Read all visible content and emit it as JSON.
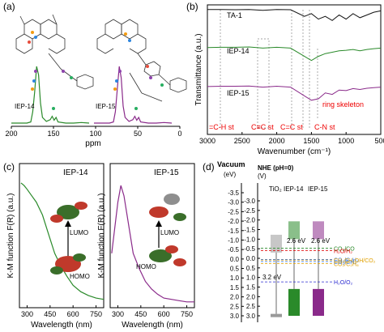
{
  "panels": {
    "a": {
      "label": "(a)",
      "xlabel": "ppm",
      "xticks": [
        "200",
        "150",
        "100",
        "50",
        "0"
      ],
      "left_name": "IEP-14",
      "right_name": "IEP-15"
    },
    "b": {
      "label": "(b)",
      "ylabel": "Transmittance (a.u.)",
      "xlabel": "Wavenumber (cm⁻¹)",
      "xticks": [
        "3000",
        "2500",
        "2000",
        "1500",
        "1000",
        "500"
      ],
      "series_labels": [
        "TA-1",
        "IEP-14",
        "IEP-15"
      ],
      "annotations": [
        "=C-H st",
        "C≡C st",
        "C=C st",
        "C-N st",
        "ring skeleton"
      ]
    },
    "c": {
      "label": "(c)",
      "ylabel": "K-M function F(R) (a.u.)",
      "xlabel": "Wavelength (nm)",
      "xticks": [
        "300",
        "450",
        "600",
        "750"
      ],
      "left_title": "IEP-14",
      "right_title": "IEP-15",
      "lumo": "LUMO",
      "homo": "HOMO"
    },
    "d": {
      "label": "(d)",
      "vacuum": "Vacuum",
      "ev": "(eV)",
      "nhe": "NHE (pH=0)",
      "v": "(V)",
      "left_ticks": [
        "-3.5",
        "-3.0",
        "-2.5",
        "-2.0",
        "-1.5",
        "-1.0",
        "-0.5",
        "0.0",
        "0.5",
        "1.0",
        "1.5",
        "2.0",
        "2.5",
        "3.0"
      ],
      "right_ticks": [
        "-3.0",
        "-2.5",
        "-2.0",
        "-1.5",
        "-1.0",
        "-0.5",
        "0.0",
        "0.5",
        "1.0",
        "1.5",
        "2.0",
        "2.5",
        "3.0"
      ],
      "columns": [
        "TiO₂",
        "IEP-14",
        "IEP-15"
      ],
      "gaps": [
        "3.2 eV",
        "2.6 eV",
        "2.6 eV"
      ],
      "redox": [
        "CO₂/CO",
        "H₂O/H₂",
        "CO₂/C₂H₄",
        "CO₂/CH₄",
        "CO₂/C₂H₆",
        "CH₃CH₂OH/CO₂",
        "H₂O/O₂"
      ]
    }
  },
  "colors": {
    "green": "#2a8a2a",
    "purple": "#8a2a8a",
    "red": "#e00000",
    "black": "#111111"
  },
  "chart_data": [
    {
      "type": "line",
      "title": "",
      "xlabel": "ppm",
      "series": [
        {
          "name": "IEP-14",
          "x": [
            200,
            160,
            150,
            145,
            140,
            135,
            130,
            125,
            120,
            110,
            100,
            95,
            90,
            85,
            80,
            60,
            40,
            20,
            0
          ],
          "y": [
            0,
            0,
            0.02,
            0.2,
            0.55,
            1.0,
            0.85,
            0.35,
            0.1,
            0.03,
            0.06,
            0.12,
            0.05,
            0.1,
            0.02,
            0,
            0,
            0.01,
            0
          ]
        },
        {
          "name": "IEP-15",
          "x": [
            200,
            160,
            150,
            145,
            140,
            135,
            130,
            125,
            120,
            110,
            100,
            95,
            90,
            85,
            80,
            60,
            40,
            20,
            0
          ],
          "y": [
            0,
            0,
            0.02,
            0.2,
            0.6,
            1.0,
            0.8,
            0.3,
            0.1,
            0.03,
            0.06,
            0.12,
            0.05,
            0.1,
            0.02,
            0,
            0,
            0.01,
            0
          ]
        }
      ],
      "xlim": [
        200,
        0
      ]
    },
    {
      "type": "line",
      "title": "",
      "xlabel": "Wavenumber (cm⁻¹)",
      "ylabel": "Transmittance (a.u.)",
      "xlim": [
        3000,
        500
      ],
      "series": [
        {
          "name": "TA-1",
          "x": [
            3000,
            2800,
            2600,
            2400,
            2200,
            2000,
            1800,
            1600,
            1500,
            1400,
            1300,
            1200,
            1100,
            1000,
            900,
            800,
            700,
            600,
            500
          ],
          "y": [
            0.95,
            0.95,
            0.94,
            0.95,
            0.92,
            0.95,
            0.94,
            0.7,
            0.8,
            0.6,
            0.7,
            0.55,
            0.75,
            0.6,
            0.8,
            0.65,
            0.75,
            0.85,
            0.9
          ]
        },
        {
          "name": "IEP-14",
          "x": [
            3000,
            2800,
            2600,
            2400,
            2200,
            2000,
            1800,
            1600,
            1500,
            1400,
            1300,
            1200,
            1100,
            1000,
            900,
            800,
            700,
            600,
            500
          ],
          "y": [
            0.92,
            0.93,
            0.93,
            0.94,
            0.9,
            0.93,
            0.9,
            0.6,
            0.45,
            0.6,
            0.7,
            0.75,
            0.8,
            0.82,
            0.85,
            0.8,
            0.85,
            0.88,
            0.9
          ]
        },
        {
          "name": "IEP-15",
          "x": [
            3000,
            2800,
            2600,
            2400,
            2200,
            2000,
            1800,
            1600,
            1500,
            1400,
            1300,
            1200,
            1100,
            1000,
            900,
            800,
            700,
            600,
            500
          ],
          "y": [
            0.92,
            0.93,
            0.93,
            0.94,
            0.9,
            0.93,
            0.9,
            0.6,
            0.45,
            0.5,
            0.7,
            0.65,
            0.8,
            0.78,
            0.85,
            0.82,
            0.86,
            0.88,
            0.9
          ]
        }
      ]
    },
    {
      "type": "line",
      "title": "IEP-14",
      "xlabel": "Wavelength (nm)",
      "ylabel": "K-M function F(R) (a.u.)",
      "xlim": [
        250,
        800
      ],
      "series": [
        {
          "name": "IEP-14",
          "x": [
            260,
            280,
            300,
            330,
            360,
            400,
            440,
            480,
            520,
            560,
            600,
            650,
            700,
            750,
            800
          ],
          "y": [
            0.95,
            0.93,
            0.9,
            0.85,
            0.8,
            0.7,
            0.55,
            0.4,
            0.3,
            0.22,
            0.15,
            0.1,
            0.07,
            0.05,
            0.04
          ]
        }
      ]
    },
    {
      "type": "line",
      "title": "IEP-15",
      "xlabel": "Wavelength (nm)",
      "xlim": [
        250,
        800
      ],
      "series": [
        {
          "name": "IEP-15",
          "x": [
            260,
            280,
            300,
            320,
            340,
            360,
            380,
            400,
            440,
            480,
            520,
            560,
            600,
            650,
            700,
            750,
            800
          ],
          "y": [
            0.4,
            0.6,
            0.8,
            0.93,
            0.85,
            0.7,
            0.55,
            0.4,
            0.28,
            0.18,
            0.12,
            0.08,
            0.05,
            0.04,
            0.03,
            0.02,
            0.02
          ]
        }
      ]
    },
    {
      "type": "bar",
      "title": "",
      "ylabel": "NHE (pH=0) (V)",
      "categories": [
        "TiO₂",
        "IEP-14",
        "IEP-15"
      ],
      "series": [
        {
          "name": "CB",
          "values": [
            -0.3,
            -1.0,
            -1.0
          ]
        },
        {
          "name": "VB",
          "values": [
            2.9,
            1.6,
            1.6
          ]
        }
      ],
      "redox_potentials": [
        {
          "name": "CO₂/CO",
          "value": -0.53
        },
        {
          "name": "H₂O/H₂",
          "value": -0.41
        },
        {
          "name": "CO₂/C₂H₄",
          "value": 0.06
        },
        {
          "name": "CO₂/CH₄",
          "value": 0.17
        },
        {
          "name": "CO₂/C₂H₆",
          "value": 0.27
        },
        {
          "name": "CH₃CH₂OH/CO₂",
          "value": 0.09
        },
        {
          "name": "H₂O/O₂",
          "value": 1.23
        }
      ],
      "ylim": [
        -3.0,
        3.0
      ]
    }
  ]
}
